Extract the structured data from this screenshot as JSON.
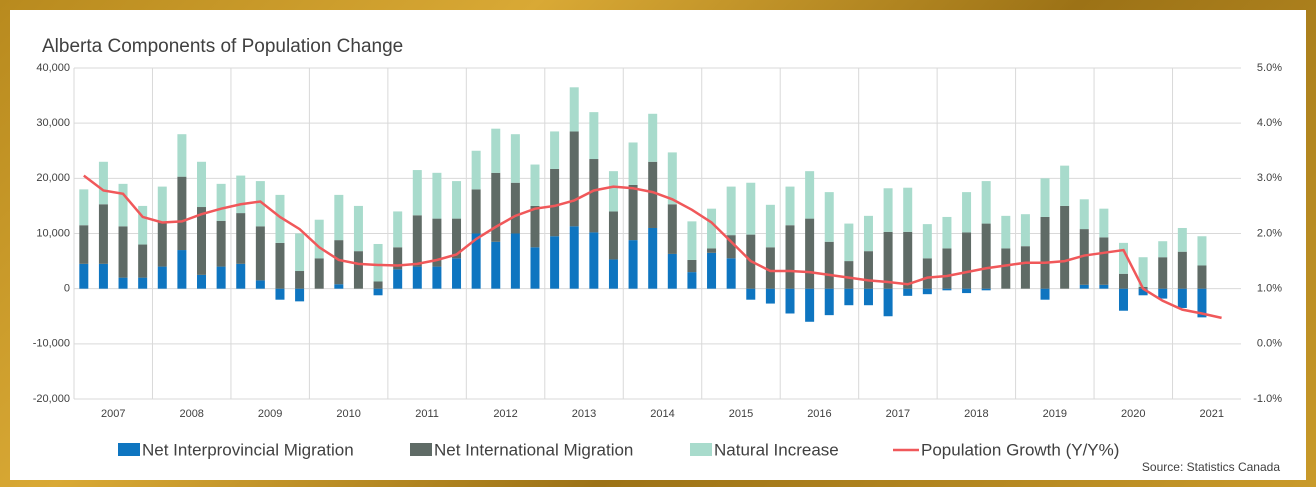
{
  "chart_data": {
    "type": "stacked_bar_line",
    "title": "Alberta Components of Population Change",
    "source": "Source: Statistics Canada",
    "year_labels": [
      "2007",
      "2008",
      "2009",
      "2010",
      "2011",
      "2012",
      "2013",
      "2014",
      "2015",
      "2016",
      "2017",
      "2018",
      "2019",
      "2020",
      "2021"
    ],
    "periods_per_label": 4,
    "ylim": [
      -20000,
      40000
    ],
    "yticks": [
      {
        "value": -20000,
        "label": "-20,000"
      },
      {
        "value": -10000,
        "label": "-10,000"
      },
      0,
      {
        "value": 10000,
        "label": "10,000"
      },
      {
        "value": 20000,
        "label": "20,000"
      },
      {
        "value": 30000,
        "label": "30,000"
      },
      {
        "value": 40000,
        "label": "40,000"
      }
    ],
    "y2lim": [
      -1,
      5
    ],
    "y2ticks": [
      {
        "value": -1,
        "label": "-1.0%"
      },
      {
        "value": 0,
        "label": "0.0%"
      },
      {
        "value": 1,
        "label": "1.0%"
      },
      {
        "value": 2,
        "label": "2.0%"
      },
      {
        "value": 3,
        "label": "3.0%"
      },
      {
        "value": 4,
        "label": "4.0%"
      },
      {
        "value": 5,
        "label": "5.0%"
      }
    ],
    "grid": true,
    "series": [
      {
        "name": "Net Interprovincial Migration",
        "color": "#0e75c0",
        "kind": "bar",
        "values": [
          4500,
          4500,
          2000,
          2000,
          4000,
          7000,
          2500,
          4000,
          4500,
          1500,
          -2000,
          -2300,
          0,
          800,
          0,
          -1200,
          3500,
          4000,
          4000,
          5500,
          10000,
          8500,
          10000,
          7500,
          9500,
          11300,
          10200,
          5300,
          8800,
          11000,
          6300,
          3000,
          6500,
          5500,
          -2000,
          -2700,
          -4500,
          -6000,
          -4800,
          -3000,
          -3000,
          -5000,
          -1300,
          -1000,
          -300,
          -800,
          -300,
          0,
          0,
          -2000,
          0,
          700,
          700,
          -4000,
          -1200,
          -1800,
          -3500,
          -5200,
          null
        ]
      },
      {
        "name": "Net International Migration",
        "color": "#5f6b66",
        "kind": "bar",
        "values": [
          7000,
          10800,
          9300,
          6000,
          8000,
          13300,
          12300,
          8300,
          9200,
          9800,
          8300,
          3200,
          5500,
          8000,
          6800,
          1300,
          4000,
          9300,
          8700,
          7200,
          8000,
          12500,
          9200,
          7500,
          12200,
          17200,
          13300,
          8700,
          10000,
          12000,
          9000,
          2200,
          800,
          4200,
          9800,
          7500,
          11500,
          12700,
          8500,
          5000,
          6800,
          10300,
          10300,
          5500,
          7300,
          10200,
          11800,
          7300,
          7700,
          13000,
          15000,
          10100,
          8600,
          2700,
          300,
          5700,
          6700,
          4200,
          null
        ]
      },
      {
        "name": "Natural Increase",
        "color": "#a8dbcc",
        "kind": "bar",
        "values": [
          6500,
          7700,
          7700,
          7000,
          6500,
          7700,
          8200,
          6700,
          6800,
          8200,
          8700,
          6800,
          7000,
          8200,
          8200,
          6800,
          6500,
          8200,
          8300,
          6800,
          7000,
          8000,
          8800,
          7500,
          6800,
          8000,
          8500,
          7300,
          7700,
          8700,
          9400,
          7000,
          7200,
          8800,
          9400,
          7700,
          7000,
          8600,
          9000,
          6800,
          6400,
          7900,
          8000,
          6200,
          5700,
          7300,
          7700,
          5900,
          5800,
          7000,
          7300,
          5400,
          5200,
          5600,
          5400,
          2900,
          4300,
          5300,
          null
        ]
      },
      {
        "name": "Population Growth (Y/Y%)",
        "color": "#f0585a",
        "kind": "line",
        "axis": "y2",
        "values": [
          3.05,
          2.78,
          2.72,
          2.3,
          2.2,
          2.22,
          2.35,
          2.45,
          2.53,
          2.58,
          2.3,
          2.08,
          1.75,
          1.52,
          1.45,
          1.43,
          1.42,
          1.45,
          1.52,
          1.62,
          1.9,
          2.12,
          2.32,
          2.45,
          2.5,
          2.6,
          2.78,
          2.85,
          2.82,
          2.75,
          2.62,
          2.43,
          2.2,
          1.85,
          1.5,
          1.32,
          1.32,
          1.3,
          1.25,
          1.2,
          1.15,
          1.12,
          1.08,
          1.2,
          1.23,
          1.3,
          1.37,
          1.42,
          1.47,
          1.47,
          1.5,
          1.6,
          1.65,
          1.7,
          1.0,
          0.78,
          0.62,
          0.55,
          0.47
        ]
      }
    ]
  }
}
